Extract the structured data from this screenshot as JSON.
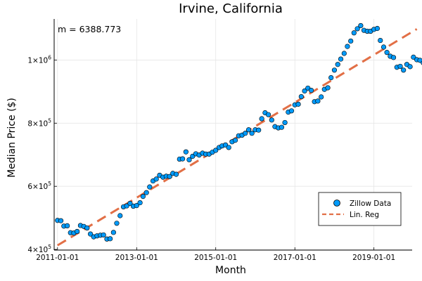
{
  "chart_data": {
    "type": "scatter",
    "title": "Irvine, California",
    "xlabel": "Month",
    "ylabel": "Median Price ($)",
    "annotation": "m = 6388.773",
    "xlim": [
      "2010-12-01",
      "2019-12-20"
    ],
    "ylim": [
      398000,
      1130000
    ],
    "x_ticks": [
      "2011-01-01",
      "2013-01-01",
      "2015-01-01",
      "2017-01-01",
      "2019-01-01"
    ],
    "y_ticks": [
      {
        "value": 400000,
        "mantissa": "4",
        "base": "10",
        "exponent": "5"
      },
      {
        "value": 600000,
        "mantissa": "6",
        "base": "10",
        "exponent": "5"
      },
      {
        "value": 800000,
        "mantissa": "8",
        "base": "10",
        "exponent": "5"
      },
      {
        "value": 1000000,
        "mantissa": "1",
        "base": "10",
        "exponent": "6"
      }
    ],
    "grid": true,
    "legend_position": "bottom-right",
    "colors": {
      "scatter": "#009af9",
      "line": "#e26f46",
      "marker_stroke": "#000000",
      "grid": "#e6e6e6"
    },
    "series": [
      {
        "name": "Zillow Data",
        "kind": "scatter",
        "points": [
          {
            "x": "2011-01",
            "y": 492000
          },
          {
            "x": "2011-02",
            "y": 491000
          },
          {
            "x": "2011-03",
            "y": 474000
          },
          {
            "x": "2011-04",
            "y": 475000
          },
          {
            "x": "2011-05",
            "y": 453000
          },
          {
            "x": "2011-06",
            "y": 452000
          },
          {
            "x": "2011-07",
            "y": 457000
          },
          {
            "x": "2011-08",
            "y": 476000
          },
          {
            "x": "2011-09",
            "y": 473000
          },
          {
            "x": "2011-10",
            "y": 468000
          },
          {
            "x": "2011-11",
            "y": 449000
          },
          {
            "x": "2011-12",
            "y": 440000
          },
          {
            "x": "2012-01",
            "y": 443000
          },
          {
            "x": "2012-02",
            "y": 445000
          },
          {
            "x": "2012-03",
            "y": 446000
          },
          {
            "x": "2012-04",
            "y": 433000
          },
          {
            "x": "2012-05",
            "y": 434000
          },
          {
            "x": "2012-06",
            "y": 454000
          },
          {
            "x": "2012-07",
            "y": 483000
          },
          {
            "x": "2012-08",
            "y": 507000
          },
          {
            "x": "2012-09",
            "y": 535000
          },
          {
            "x": "2012-10",
            "y": 538000
          },
          {
            "x": "2012-11",
            "y": 546000
          },
          {
            "x": "2012-12",
            "y": 537000
          },
          {
            "x": "2013-01",
            "y": 539000
          },
          {
            "x": "2013-02",
            "y": 548000
          },
          {
            "x": "2013-03",
            "y": 568000
          },
          {
            "x": "2013-04",
            "y": 580000
          },
          {
            "x": "2013-05",
            "y": 598000
          },
          {
            "x": "2013-06",
            "y": 617000
          },
          {
            "x": "2013-07",
            "y": 623000
          },
          {
            "x": "2013-08",
            "y": 635000
          },
          {
            "x": "2013-09",
            "y": 629000
          },
          {
            "x": "2013-10",
            "y": 632000
          },
          {
            "x": "2013-11",
            "y": 631000
          },
          {
            "x": "2013-12",
            "y": 641000
          },
          {
            "x": "2014-01",
            "y": 638000
          },
          {
            "x": "2014-02",
            "y": 686000
          },
          {
            "x": "2014-03",
            "y": 687000
          },
          {
            "x": "2014-04",
            "y": 709000
          },
          {
            "x": "2014-05",
            "y": 684000
          },
          {
            "x": "2014-06",
            "y": 695000
          },
          {
            "x": "2014-07",
            "y": 703000
          },
          {
            "x": "2014-08",
            "y": 699000
          },
          {
            "x": "2014-09",
            "y": 705000
          },
          {
            "x": "2014-10",
            "y": 702000
          },
          {
            "x": "2014-11",
            "y": 702000
          },
          {
            "x": "2014-12",
            "y": 708000
          },
          {
            "x": "2015-01",
            "y": 714000
          },
          {
            "x": "2015-02",
            "y": 723000
          },
          {
            "x": "2015-03",
            "y": 728000
          },
          {
            "x": "2015-04",
            "y": 731000
          },
          {
            "x": "2015-05",
            "y": 723000
          },
          {
            "x": "2015-06",
            "y": 741000
          },
          {
            "x": "2015-07",
            "y": 746000
          },
          {
            "x": "2015-08",
            "y": 760000
          },
          {
            "x": "2015-09",
            "y": 762000
          },
          {
            "x": "2015-10",
            "y": 768000
          },
          {
            "x": "2015-11",
            "y": 779000
          },
          {
            "x": "2015-12",
            "y": 768000
          },
          {
            "x": "2016-01",
            "y": 779000
          },
          {
            "x": "2016-02",
            "y": 778000
          },
          {
            "x": "2016-03",
            "y": 814000
          },
          {
            "x": "2016-04",
            "y": 833000
          },
          {
            "x": "2016-05",
            "y": 827000
          },
          {
            "x": "2016-06",
            "y": 810000
          },
          {
            "x": "2016-07",
            "y": 789000
          },
          {
            "x": "2016-08",
            "y": 785000
          },
          {
            "x": "2016-09",
            "y": 787000
          },
          {
            "x": "2016-10",
            "y": 802000
          },
          {
            "x": "2016-11",
            "y": 835000
          },
          {
            "x": "2016-12",
            "y": 839000
          },
          {
            "x": "2017-01",
            "y": 858000
          },
          {
            "x": "2017-02",
            "y": 860000
          },
          {
            "x": "2017-03",
            "y": 884000
          },
          {
            "x": "2017-04",
            "y": 902000
          },
          {
            "x": "2017-05",
            "y": 911000
          },
          {
            "x": "2017-06",
            "y": 904000
          },
          {
            "x": "2017-07",
            "y": 868000
          },
          {
            "x": "2017-08",
            "y": 870000
          },
          {
            "x": "2017-09",
            "y": 883000
          },
          {
            "x": "2017-10",
            "y": 907000
          },
          {
            "x": "2017-11",
            "y": 912000
          },
          {
            "x": "2017-12",
            "y": 944000
          },
          {
            "x": "2018-01",
            "y": 968000
          },
          {
            "x": "2018-02",
            "y": 986000
          },
          {
            "x": "2018-03",
            "y": 1003000
          },
          {
            "x": "2018-04",
            "y": 1021000
          },
          {
            "x": "2018-05",
            "y": 1043000
          },
          {
            "x": "2018-06",
            "y": 1060000
          },
          {
            "x": "2018-07",
            "y": 1086000
          },
          {
            "x": "2018-08",
            "y": 1099000
          },
          {
            "x": "2018-09",
            "y": 1109000
          },
          {
            "x": "2018-10",
            "y": 1094000
          },
          {
            "x": "2018-11",
            "y": 1091000
          },
          {
            "x": "2018-12",
            "y": 1091000
          },
          {
            "x": "2019-01",
            "y": 1097000
          },
          {
            "x": "2019-02",
            "y": 1100000
          },
          {
            "x": "2019-03",
            "y": 1062000
          },
          {
            "x": "2019-04",
            "y": 1041000
          },
          {
            "x": "2019-05",
            "y": 1024000
          },
          {
            "x": "2019-06",
            "y": 1012000
          },
          {
            "x": "2019-07",
            "y": 1008000
          },
          {
            "x": "2019-08",
            "y": 977000
          },
          {
            "x": "2019-09",
            "y": 980000
          },
          {
            "x": "2019-10",
            "y": 968000
          },
          {
            "x": "2019-11",
            "y": 986000
          },
          {
            "x": "2019-12",
            "y": 979000
          },
          {
            "x": "2020-01",
            "y": 1009000
          },
          {
            "x": "2020-02",
            "y": 1001000
          },
          {
            "x": "2020-03",
            "y": 999000
          },
          {
            "x": "2020-04",
            "y": 991000
          }
        ]
      },
      {
        "name": "Lin. Reg",
        "kind": "line",
        "dash": "dashed",
        "points": [
          {
            "x": "2011-01",
            "y": 413000
          },
          {
            "x": "2020-02",
            "y": 1098000
          }
        ]
      }
    ]
  }
}
